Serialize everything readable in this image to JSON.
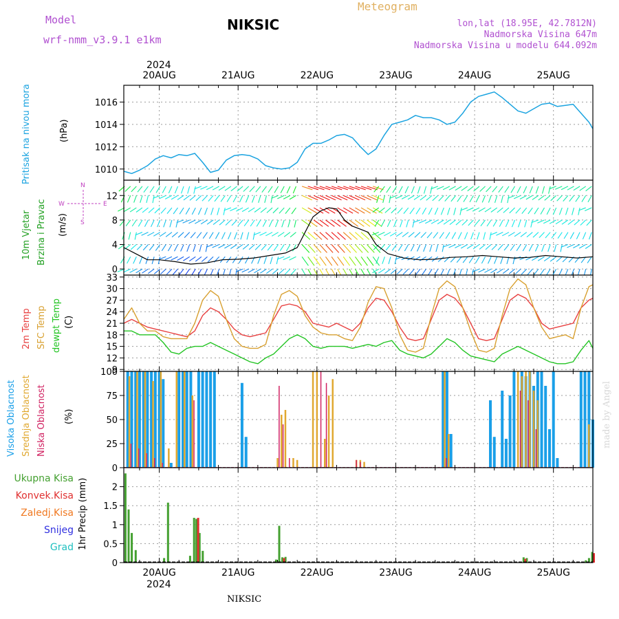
{
  "header": {
    "model_label": "Model",
    "model_name": "wrf-nmm_v3.9.1 e1km",
    "station": "NIKSIC",
    "title": "Meteogram",
    "lonlat": "lon,lat (18.95E, 42.7812N)",
    "alt_station": "Nadmorska Visina 647m",
    "alt_model": "Nadmorska Visina u modelu 644.092m",
    "year_top": "2024",
    "year_bottom": "2024",
    "footer_station": "NIKSIC",
    "watermark": "made by Angel"
  },
  "colors": {
    "pressure": "#1aa3e0",
    "temp2m": "#e84040",
    "sfc": "#d8a030",
    "dewpt": "#22c422",
    "high_cloud": "#1a9fe8",
    "mid_cloud": "#e0a830",
    "low_cloud": "#d02060",
    "total_precip": "#44a030",
    "conv_precip": "#e03030",
    "strat_precip": "#f07820",
    "snow": "#3030e0",
    "grad": "#20c0c0",
    "wind_label": "#22a022",
    "compass": "#c040c0"
  },
  "chart_data": [
    {
      "type": "line",
      "panel": "pressure",
      "side_label": "Pritisak na nivou mora",
      "ylabel": "(hPa)",
      "ylim": [
        1009,
        1017.5
      ],
      "yticks": [
        "1010",
        "1012",
        "1014",
        "1016"
      ],
      "x_unit": "day of Aug 2024",
      "xlim": [
        19.55,
        25.5
      ],
      "date_ticks": [
        "20AUG",
        "21AUG",
        "22AUG",
        "23AUG",
        "24AUG",
        "25AUG"
      ],
      "grid": true,
      "series": [
        {
          "x": [
            19.55,
            19.65,
            19.75,
            19.85,
            19.95,
            20.05,
            20.15,
            20.25,
            20.35,
            20.45,
            20.55,
            20.65,
            20.75,
            20.85,
            20.95,
            21.05,
            21.15,
            21.25,
            21.35,
            21.45,
            21.55,
            21.65,
            21.75,
            21.85,
            21.95,
            22.05,
            22.15,
            22.25,
            22.35,
            22.45,
            22.55,
            22.65,
            22.75,
            22.85,
            22.95,
            23.05,
            23.15,
            23.25,
            23.35,
            23.45,
            23.55,
            23.65,
            23.75,
            23.85,
            23.95,
            24.05,
            24.15,
            24.25,
            24.35,
            24.45,
            24.55,
            24.65,
            24.75,
            24.85,
            24.95,
            25.05,
            25.15,
            25.25,
            25.35,
            25.45,
            25.5
          ],
          "y": [
            1009.8,
            1009.6,
            1009.9,
            1010.3,
            1010.9,
            1011.2,
            1011.0,
            1011.3,
            1011.2,
            1011.4,
            1010.6,
            1009.7,
            1009.9,
            1010.8,
            1011.2,
            1011.3,
            1011.2,
            1010.9,
            1010.3,
            1010.1,
            1010.0,
            1010.1,
            1010.6,
            1011.8,
            1012.3,
            1012.3,
            1012.6,
            1013.0,
            1013.1,
            1012.8,
            1012.0,
            1011.3,
            1011.8,
            1013.0,
            1014.0,
            1014.2,
            1014.4,
            1014.8,
            1014.6,
            1014.6,
            1014.4,
            1014.0,
            1014.2,
            1015.0,
            1016.0,
            1016.5,
            1016.7,
            1016.9,
            1016.4,
            1015.8,
            1015.2,
            1015.0,
            1015.4,
            1015.8,
            1015.9,
            1015.6,
            1015.7,
            1015.8,
            1015.0,
            1014.2,
            1013.6
          ]
        }
      ]
    },
    {
      "type": "line",
      "panel": "wind",
      "side_label_1": "10m Vjetar",
      "side_label_2": "Brzina i Pravac",
      "ylabel": "(m/s)",
      "ylim": [
        -1,
        14.5
      ],
      "yticks": [
        "0",
        "4",
        "8",
        "12"
      ],
      "compass": {
        "n": "N",
        "e": "E",
        "w": "W",
        "s": "S"
      },
      "x_unit": "day of Aug 2024",
      "grid": true,
      "series": [
        {
          "name": "wind speed",
          "x": [
            19.55,
            19.7,
            19.85,
            20.0,
            20.2,
            20.4,
            20.6,
            20.8,
            21.0,
            21.2,
            21.4,
            21.6,
            21.75,
            21.85,
            21.95,
            22.05,
            22.15,
            22.25,
            22.35,
            22.45,
            22.55,
            22.65,
            22.75,
            22.9,
            23.1,
            23.3,
            23.5,
            23.7,
            23.9,
            24.1,
            24.3,
            24.5,
            24.7,
            24.9,
            25.1,
            25.3,
            25.5
          ],
          "y": [
            3.5,
            2.5,
            1.5,
            1.5,
            1.2,
            0.8,
            1.0,
            1.5,
            1.6,
            1.8,
            2.2,
            2.6,
            3.5,
            6.0,
            8.5,
            9.5,
            10.0,
            9.8,
            8.0,
            7.0,
            6.5,
            6.0,
            4.0,
            2.5,
            1.8,
            1.5,
            1.6,
            1.9,
            2.0,
            2.2,
            2.0,
            1.8,
            1.9,
            2.2,
            2.0,
            1.8,
            2.0
          ]
        }
      ]
    },
    {
      "type": "line",
      "panel": "temperature",
      "side_labels": [
        "2m Temp",
        "SFC Temp",
        "dewpt Temp"
      ],
      "ylabel": "(C)",
      "ylim": [
        8.5,
        33.5
      ],
      "yticks": [
        "9",
        "12",
        "15",
        "18",
        "21",
        "24",
        "27",
        "30",
        "33"
      ],
      "x_unit": "day of Aug 2024",
      "grid": true,
      "series": [
        {
          "name": "2m Temp",
          "x": [
            19.55,
            19.65,
            19.75,
            19.85,
            19.95,
            20.05,
            20.15,
            20.25,
            20.35,
            20.45,
            20.55,
            20.65,
            20.75,
            20.85,
            20.95,
            21.05,
            21.15,
            21.25,
            21.35,
            21.45,
            21.55,
            21.65,
            21.75,
            21.85,
            21.95,
            22.05,
            22.15,
            22.25,
            22.35,
            22.45,
            22.55,
            22.65,
            22.75,
            22.85,
            22.95,
            23.05,
            23.15,
            23.25,
            23.35,
            23.45,
            23.55,
            23.65,
            23.75,
            23.85,
            23.95,
            24.05,
            24.15,
            24.25,
            24.35,
            24.45,
            24.55,
            24.65,
            24.75,
            24.85,
            24.95,
            25.05,
            25.15,
            25.25,
            25.35,
            25.45,
            25.5
          ],
          "y": [
            21,
            22,
            21,
            20,
            19.5,
            19,
            18.5,
            18,
            17.5,
            19,
            23,
            25,
            24,
            22,
            19.5,
            18,
            17.5,
            18,
            18.5,
            22,
            25.5,
            26,
            25.5,
            24,
            21,
            20.5,
            20,
            21,
            20,
            19,
            21,
            25,
            27.5,
            27,
            24,
            20,
            17,
            16.5,
            17,
            22,
            27,
            28.5,
            27.5,
            25,
            21,
            17,
            16.5,
            17,
            22,
            27,
            28.5,
            27.5,
            25,
            21,
            19.5,
            20,
            20.5,
            21,
            25,
            27,
            27.5
          ]
        },
        {
          "name": "SFC Temp",
          "x": [
            19.55,
            19.65,
            19.75,
            19.85,
            19.95,
            20.05,
            20.15,
            20.25,
            20.35,
            20.45,
            20.55,
            20.65,
            20.75,
            20.85,
            20.95,
            21.05,
            21.15,
            21.25,
            21.35,
            21.45,
            21.55,
            21.65,
            21.75,
            21.85,
            21.95,
            22.05,
            22.15,
            22.25,
            22.35,
            22.45,
            22.55,
            22.65,
            22.75,
            22.85,
            22.95,
            23.05,
            23.15,
            23.25,
            23.35,
            23.45,
            23.55,
            23.65,
            23.75,
            23.85,
            23.95,
            24.05,
            24.15,
            24.25,
            24.35,
            24.45,
            24.55,
            24.65,
            24.75,
            24.85,
            24.95,
            25.05,
            25.15,
            25.25,
            25.35,
            25.45,
            25.5
          ],
          "y": [
            22,
            25,
            21,
            19,
            19,
            17.5,
            17,
            17,
            17,
            21,
            27,
            29.5,
            28,
            22,
            17,
            15,
            14.5,
            14.5,
            15.5,
            23,
            28.5,
            29.5,
            28,
            23,
            20,
            18.5,
            18,
            18,
            17,
            16.5,
            20,
            26.5,
            30.5,
            30,
            25,
            18,
            14,
            13.5,
            14.5,
            23,
            30,
            32,
            30.5,
            25,
            19,
            14,
            13.5,
            14.5,
            23,
            30,
            32.5,
            31,
            25,
            20,
            17,
            17.5,
            18,
            17,
            25,
            30.5,
            31
          ]
        },
        {
          "name": "dewpt Temp",
          "x": [
            19.55,
            19.65,
            19.75,
            19.85,
            19.95,
            20.05,
            20.15,
            20.25,
            20.35,
            20.45,
            20.55,
            20.65,
            20.75,
            20.85,
            20.95,
            21.05,
            21.15,
            21.25,
            21.35,
            21.45,
            21.55,
            21.65,
            21.75,
            21.85,
            21.95,
            22.05,
            22.15,
            22.25,
            22.35,
            22.45,
            22.55,
            22.65,
            22.75,
            22.85,
            22.95,
            23.05,
            23.15,
            23.25,
            23.35,
            23.45,
            23.55,
            23.65,
            23.75,
            23.85,
            23.95,
            24.05,
            24.15,
            24.25,
            24.35,
            24.45,
            24.55,
            24.65,
            24.75,
            24.85,
            24.95,
            25.05,
            25.15,
            25.25,
            25.35,
            25.45,
            25.5
          ],
          "y": [
            19,
            19,
            18,
            18,
            18,
            16,
            13.5,
            13,
            14.5,
            15,
            15,
            16,
            15,
            14,
            13,
            12,
            11,
            10.5,
            12,
            13,
            15,
            17,
            18,
            17,
            15,
            14.5,
            15,
            15,
            15,
            14.5,
            15,
            15.5,
            15,
            16,
            16.5,
            14,
            13,
            12.5,
            12,
            13,
            15,
            17,
            16,
            14,
            12.5,
            12,
            11.5,
            11,
            13,
            14,
            15,
            14,
            13,
            12,
            11,
            10.5,
            10.5,
            11,
            14,
            16.5,
            14.5
          ]
        }
      ]
    },
    {
      "type": "bar",
      "panel": "cloud",
      "side_labels": [
        "Visoka Oblacnost",
        "Srednja Oblacnost",
        "Niska Oblacnost"
      ],
      "ylabel": "(%)",
      "ylim": [
        0,
        100
      ],
      "yticks": [
        "0",
        "25",
        "50",
        "75",
        "100"
      ],
      "x_unit": "day of Aug 2024",
      "grid": true,
      "series": [
        {
          "name": "Visoka Oblacnost",
          "x": [
            19.6,
            19.65,
            19.7,
            19.75,
            19.8,
            19.85,
            19.9,
            19.95,
            20.0,
            20.05,
            20.15,
            20.25,
            20.3,
            20.35,
            20.4,
            20.5,
            20.55,
            20.6,
            20.65,
            20.7,
            21.05,
            21.1,
            23.6,
            23.65,
            23.7,
            24.2,
            24.25,
            24.35,
            24.4,
            24.45,
            24.5,
            24.6,
            24.65,
            24.7,
            24.75,
            24.8,
            24.85,
            24.9,
            24.95,
            25.0,
            25.05,
            25.35,
            25.4,
            25.45,
            25.5
          ],
          "y": [
            100,
            100,
            100,
            100,
            100,
            100,
            100,
            100,
            100,
            92,
            5,
            100,
            100,
            100,
            100,
            100,
            100,
            100,
            100,
            100,
            88,
            32,
            100,
            100,
            35,
            70,
            32,
            80,
            30,
            75,
            100,
            100,
            95,
            100,
            85,
            100,
            100,
            85,
            40,
            100,
            10,
            100,
            100,
            100,
            50
          ]
        },
        {
          "name": "Srednja Oblacnost",
          "x": [
            19.62,
            19.72,
            19.82,
            19.92,
            20.02,
            20.12,
            20.22,
            20.32,
            20.42,
            21.5,
            21.55,
            21.6,
            21.7,
            21.75,
            21.95,
            22.0,
            22.1,
            22.15,
            22.2,
            22.5,
            22.55,
            22.6,
            23.62,
            23.67,
            24.55,
            24.6,
            24.65,
            24.7,
            24.75,
            24.8,
            25.45
          ],
          "y": [
            95,
            100,
            100,
            90,
            100,
            20,
            100,
            100,
            75,
            10,
            55,
            60,
            10,
            8,
            100,
            100,
            30,
            75,
            92,
            8,
            8,
            6,
            100,
            35,
            100,
            95,
            100,
            100,
            80,
            70,
            45
          ]
        },
        {
          "name": "Niska Oblacnost",
          "x": [
            19.64,
            19.74,
            19.84,
            19.94,
            20.04,
            20.44,
            21.52,
            21.57,
            21.65,
            22.05,
            22.12,
            22.5,
            22.55,
            23.64,
            24.58,
            24.68,
            24.78
          ],
          "y": [
            25,
            20,
            15,
            10,
            5,
            70,
            85,
            45,
            10,
            100,
            88,
            8,
            6,
            10,
            80,
            70,
            40
          ]
        }
      ]
    },
    {
      "type": "bar",
      "panel": "precip",
      "legend": [
        "Ukupna Kisa",
        "Konvek.Kisa",
        "Zaledj.Kisa",
        "Snijeg",
        "Grad"
      ],
      "ylabel": "1hr Precip (mm)",
      "ylim": [
        0,
        2.5
      ],
      "yticks": [
        "0",
        "0.5",
        "1",
        "1.5",
        "2"
      ],
      "x_unit": "day of Aug 2024",
      "grid": true,
      "series": [
        {
          "name": "Ukupna Kisa",
          "x": [
            19.58,
            19.62,
            19.66,
            19.71,
            20.07,
            20.12,
            20.4,
            20.45,
            20.48,
            20.52,
            20.56,
            21.49,
            21.53,
            21.57,
            21.61,
            24.63,
            24.67,
            25.42,
            25.46,
            25.5
          ],
          "y": [
            2.35,
            1.4,
            0.78,
            0.33,
            0.12,
            1.58,
            0.18,
            1.18,
            1.15,
            0.78,
            0.31,
            0.08,
            0.97,
            0.14,
            0.15,
            0.14,
            0.12,
            0.06,
            0.12,
            0.28
          ]
        },
        {
          "name": "Konvek.Kisa",
          "x": [
            20.48,
            21.57,
            24.63,
            25.5
          ],
          "y": [
            1.18,
            0.12,
            0.1,
            0.25
          ]
        }
      ]
    }
  ]
}
